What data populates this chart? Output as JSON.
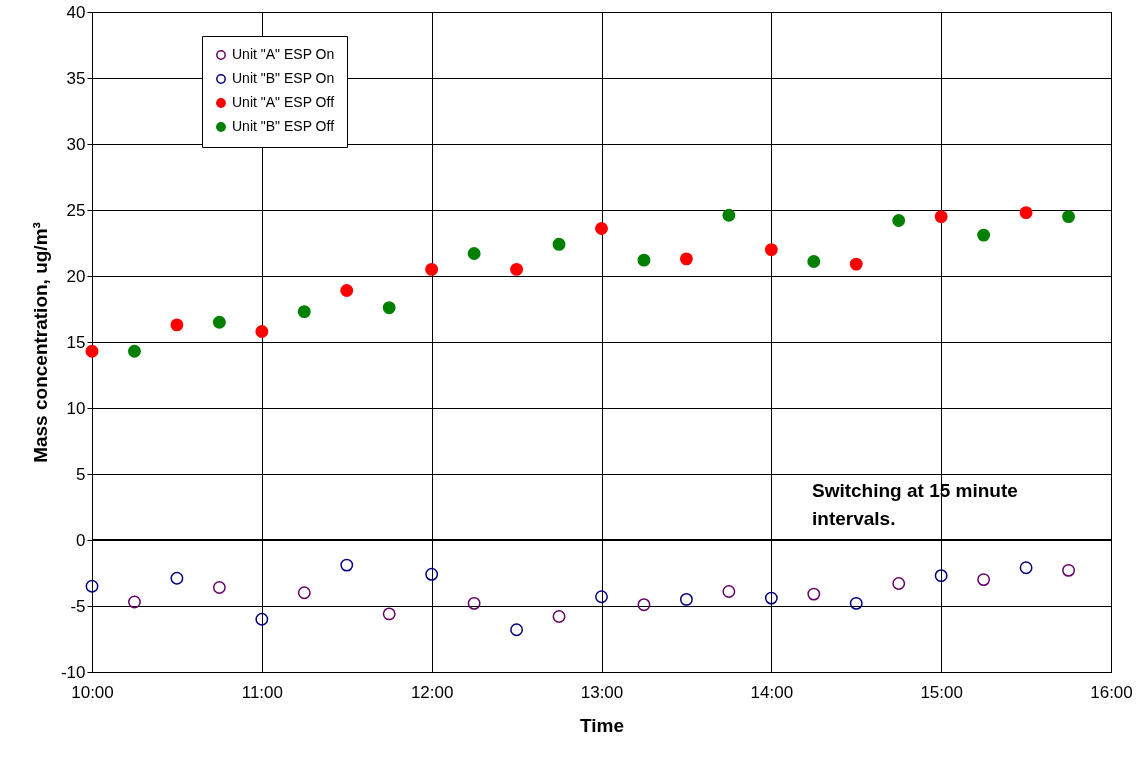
{
  "chart_data": {
    "type": "scatter",
    "xlabel": "Time",
    "ylabel": "Mass concentration, ug/m³",
    "xlim": [
      10,
      16
    ],
    "xticks": [
      {
        "value": 10,
        "label": "10:00"
      },
      {
        "value": 11,
        "label": "11:00"
      },
      {
        "value": 12,
        "label": "12:00"
      },
      {
        "value": 13,
        "label": "13:00"
      },
      {
        "value": 14,
        "label": "14:00"
      },
      {
        "value": 15,
        "label": "15:00"
      },
      {
        "value": 16,
        "label": "16:00"
      }
    ],
    "ylim": [
      -10,
      40
    ],
    "yticks": [
      -10,
      -5,
      0,
      5,
      10,
      15,
      20,
      25,
      30,
      35,
      40
    ],
    "grid": true,
    "legend": "top left",
    "marker": "circle",
    "annotations": [
      "Switching at 15 minute intervals."
    ],
    "ref_lines": [
      {
        "axis": "y",
        "value": 0,
        "color": "#000000"
      }
    ],
    "series": [
      {
        "name": "Unit \"A\" ESP On",
        "color": "#660066",
        "x": [
          10.25,
          10.75,
          11.25,
          11.75,
          12.25,
          12.75,
          13.25,
          13.75,
          14.25,
          14.75,
          15.25,
          15.75
        ],
        "values": [
          -4.7,
          -3.6,
          -4.0,
          -5.6,
          -4.8,
          -5.8,
          -4.9,
          -3.9,
          -4.1,
          -3.3,
          -3.0,
          -2.3
        ]
      },
      {
        "name": "Unit \"B\" ESP On",
        "color": "#000080",
        "x": [
          10,
          10.5,
          11,
          11.5,
          12,
          12.5,
          13,
          13.5,
          14,
          14.5,
          15,
          15.5
        ],
        "values": [
          -3.5,
          -2.9,
          -6.0,
          -1.9,
          -2.6,
          -6.8,
          -4.3,
          -4.5,
          -4.4,
          -4.8,
          -2.7,
          -2.1
        ]
      },
      {
        "name": "Unit \"A\" ESP Off",
        "color": "#ff0000",
        "x": [
          10,
          10.5,
          11,
          11.5,
          12,
          12.5,
          13,
          13.5,
          14,
          14.5,
          15,
          15.5
        ],
        "values": [
          14.3,
          16.3,
          15.8,
          18.9,
          20.5,
          20.5,
          23.6,
          21.3,
          22.0,
          20.9,
          24.5,
          24.8
        ]
      },
      {
        "name": "Unit \"B\" ESP Off",
        "color": "#008000",
        "x": [
          10.25,
          10.75,
          11.25,
          11.75,
          12.25,
          12.75,
          13.25,
          13.75,
          14.25,
          14.75,
          15.25,
          15.75
        ],
        "values": [
          14.3,
          16.5,
          17.3,
          17.6,
          21.7,
          22.4,
          21.2,
          24.6,
          21.1,
          24.2,
          23.1,
          24.5
        ]
      }
    ]
  }
}
